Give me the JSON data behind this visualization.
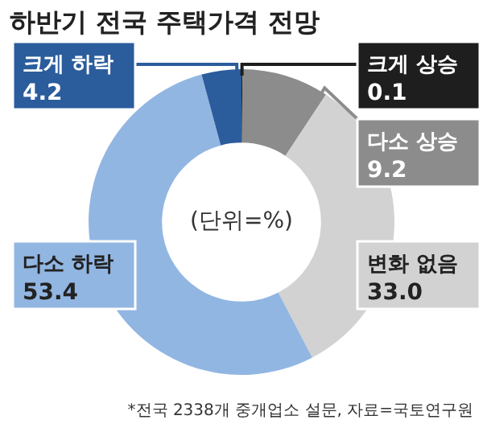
{
  "chart_data": {
    "type": "donut",
    "title": "하반기 전국 주택가격 전망",
    "categories": [
      "크게 상승",
      "다소 상승",
      "변화 없음",
      "다소 하락",
      "크게 하락"
    ],
    "values": [
      0.1,
      9.2,
      33.0,
      53.4,
      4.2
    ],
    "value_labels": [
      "0.1",
      "9.2",
      "33.0",
      "53.4",
      "4.2"
    ],
    "colors": [
      "#1e1e1e",
      "#8c8c8c",
      "#d2d2d2",
      "#92b6e2",
      "#2b5c9c"
    ],
    "annotations": [
      "(단위=%)",
      "*전국 2338개 중개업소 설문, 자료=국토연구원"
    ],
    "legend": false
  }
}
